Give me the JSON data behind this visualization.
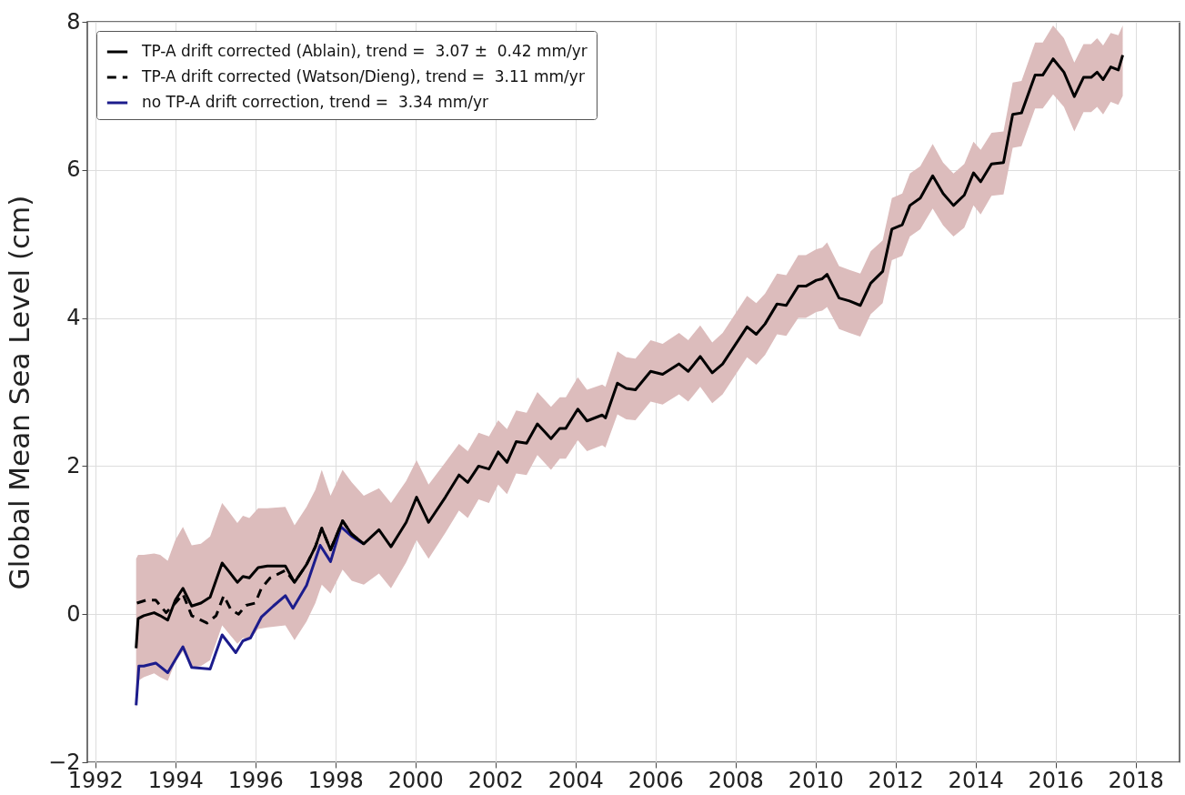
{
  "chart_data": {
    "type": "line",
    "ylabel": "Global Mean Sea Level (cm)",
    "xlim": [
      1991.8,
      2019.1
    ],
    "ylim": [
      -2,
      8
    ],
    "xticks": [
      1992,
      1994,
      1996,
      1998,
      2000,
      2002,
      2004,
      2006,
      2008,
      2010,
      2012,
      2014,
      2016,
      2018
    ],
    "yticks": [
      -2,
      0,
      2,
      4,
      6,
      8
    ],
    "grid": true,
    "legend": "top left",
    "series": [
      {
        "name": "TP-A drift corrected (Ablain), trend =  3.07 ±  0.42 mm/yr",
        "color": "#000000",
        "line_style": "solid",
        "x": [
          1993.02,
          1993.07,
          1993.21,
          1993.47,
          1993.62,
          1993.81,
          1994.0,
          1994.19,
          1994.41,
          1994.64,
          1994.87,
          1995.17,
          1995.32,
          1995.55,
          1995.69,
          1995.85,
          1996.07,
          1996.3,
          1996.75,
          1996.98,
          1997.28,
          1997.5,
          1997.66,
          1997.88,
          1998.18,
          1998.41,
          1998.71,
          1999.09,
          1999.39,
          1999.77,
          2000.03,
          2000.33,
          2000.75,
          2001.09,
          2001.31,
          2001.58,
          2001.84,
          2002.07,
          2002.29,
          2002.52,
          2002.78,
          2003.05,
          2003.39,
          2003.61,
          2003.76,
          2004.06,
          2004.29,
          2004.67,
          2004.75,
          2005.05,
          2005.27,
          2005.5,
          2005.88,
          2006.18,
          2006.59,
          2006.82,
          2007.12,
          2007.42,
          2007.68,
          2008.29,
          2008.52,
          2008.74,
          2009.04,
          2009.27,
          2009.57,
          2009.76,
          2010.02,
          2010.17,
          2010.29,
          2010.59,
          2010.85,
          2011.12,
          2011.38,
          2011.68,
          2011.91,
          2012.17,
          2012.36,
          2012.62,
          2012.93,
          2013.19,
          2013.45,
          2013.72,
          2013.95,
          2014.13,
          2014.4,
          2014.7,
          2014.93,
          2015.15,
          2015.49,
          2015.68,
          2015.94,
          2016.21,
          2016.47,
          2016.7,
          2016.89,
          2017.04,
          2017.19,
          2017.38,
          2017.57,
          2017.68
        ],
        "values": [
          -0.46,
          -0.06,
          -0.02,
          0.02,
          -0.02,
          -0.08,
          0.19,
          0.35,
          0.11,
          0.15,
          0.23,
          0.69,
          0.59,
          0.43,
          0.51,
          0.49,
          0.63,
          0.65,
          0.65,
          0.43,
          0.67,
          0.91,
          1.16,
          0.87,
          1.26,
          1.08,
          0.95,
          1.14,
          0.91,
          1.24,
          1.58,
          1.24,
          1.58,
          1.88,
          1.78,
          2.0,
          1.96,
          2.19,
          2.05,
          2.33,
          2.31,
          2.57,
          2.37,
          2.51,
          2.51,
          2.77,
          2.61,
          2.69,
          2.65,
          3.12,
          3.05,
          3.03,
          3.28,
          3.24,
          3.38,
          3.28,
          3.48,
          3.26,
          3.38,
          3.88,
          3.78,
          3.92,
          4.19,
          4.17,
          4.43,
          4.43,
          4.51,
          4.53,
          4.59,
          4.27,
          4.23,
          4.17,
          4.47,
          4.63,
          5.2,
          5.26,
          5.52,
          5.62,
          5.92,
          5.68,
          5.52,
          5.66,
          5.96,
          5.84,
          6.08,
          6.1,
          6.75,
          6.77,
          7.28,
          7.28,
          7.5,
          7.32,
          6.99,
          7.25,
          7.25,
          7.32,
          7.22,
          7.39,
          7.35,
          7.55
        ],
        "lower": [
          -1.3,
          -0.9,
          -0.85,
          -0.8,
          -0.85,
          -0.9,
          -0.65,
          -0.5,
          -0.72,
          -0.7,
          -0.62,
          -0.15,
          -0.25,
          -0.4,
          -0.32,
          -0.35,
          -0.2,
          -0.18,
          -0.15,
          -0.35,
          -0.1,
          0.15,
          0.4,
          0.28,
          0.6,
          0.45,
          0.4,
          0.55,
          0.35,
          0.7,
          1.0,
          0.75,
          1.1,
          1.4,
          1.3,
          1.55,
          1.5,
          1.75,
          1.62,
          1.9,
          1.88,
          2.15,
          1.95,
          2.1,
          2.1,
          2.35,
          2.2,
          2.28,
          2.25,
          2.7,
          2.63,
          2.62,
          2.87,
          2.83,
          2.97,
          2.87,
          3.07,
          2.85,
          2.97,
          3.47,
          3.37,
          3.5,
          3.78,
          3.76,
          4.0,
          4.0,
          4.08,
          4.1,
          4.15,
          3.85,
          3.8,
          3.75,
          4.05,
          4.2,
          4.78,
          4.84,
          5.1,
          5.2,
          5.48,
          5.25,
          5.1,
          5.22,
          5.52,
          5.4,
          5.65,
          5.67,
          6.3,
          6.32,
          6.83,
          6.83,
          7.02,
          6.85,
          6.52,
          6.78,
          6.78,
          6.85,
          6.75,
          6.92,
          6.88,
          7.0
        ],
        "upper": [
          0.75,
          0.8,
          0.8,
          0.82,
          0.8,
          0.72,
          1.0,
          1.18,
          0.93,
          0.95,
          1.05,
          1.5,
          1.4,
          1.23,
          1.33,
          1.3,
          1.43,
          1.43,
          1.45,
          1.2,
          1.45,
          1.68,
          1.95,
          1.6,
          1.95,
          1.78,
          1.6,
          1.7,
          1.5,
          1.8,
          2.08,
          1.75,
          2.05,
          2.3,
          2.2,
          2.45,
          2.4,
          2.62,
          2.5,
          2.75,
          2.72,
          3.0,
          2.8,
          2.93,
          2.93,
          3.2,
          3.03,
          3.1,
          3.07,
          3.55,
          3.47,
          3.45,
          3.7,
          3.65,
          3.8,
          3.7,
          3.9,
          3.67,
          3.8,
          4.3,
          4.2,
          4.33,
          4.6,
          4.58,
          4.85,
          4.85,
          4.93,
          4.95,
          5.02,
          4.7,
          4.65,
          4.6,
          4.9,
          5.05,
          5.62,
          5.68,
          5.95,
          6.05,
          6.35,
          6.1,
          5.95,
          6.08,
          6.38,
          6.27,
          6.5,
          6.52,
          7.18,
          7.2,
          7.72,
          7.72,
          7.95,
          7.78,
          7.45,
          7.7,
          7.7,
          7.78,
          7.68,
          7.85,
          7.82,
          7.95
        ]
      },
      {
        "name": "TP-A drift corrected (Watson/Dieng), trend =  3.11 mm/yr",
        "color": "#000000",
        "line_style": "dashed",
        "x": [
          1993.04,
          1993.28,
          1993.51,
          1993.77,
          1994.0,
          1994.19,
          1994.41,
          1994.79,
          1995.02,
          1995.21,
          1995.39,
          1995.58,
          1995.77,
          1996.0,
          1996.15,
          1996.37,
          1996.6,
          1996.75,
          1996.98,
          1997.28,
          1997.5,
          1997.66,
          1997.88,
          1998.18,
          1998.41,
          1998.71
        ],
        "values": [
          0.15,
          0.19,
          0.19,
          0.02,
          0.15,
          0.27,
          -0.02,
          -0.12,
          -0.02,
          0.25,
          0.06,
          0.0,
          0.12,
          0.15,
          0.35,
          0.49,
          0.55,
          0.59,
          0.43,
          0.67,
          0.91,
          1.16,
          0.87,
          1.26,
          1.08,
          0.95
        ]
      },
      {
        "name": "no TP-A drift correction, trend =  3.34 mm/yr",
        "color": "#1c1c8c",
        "line_style": "solid",
        "x": [
          1993.02,
          1993.09,
          1993.21,
          1993.51,
          1993.81,
          1994.19,
          1994.41,
          1994.87,
          1995.17,
          1995.51,
          1995.69,
          1995.88,
          1996.15,
          1996.45,
          1996.75,
          1996.94,
          1997.28,
          1997.62,
          1997.88,
          1998.14,
          1998.41,
          1998.71
        ],
        "values": [
          -1.23,
          -0.7,
          -0.7,
          -0.66,
          -0.79,
          -0.44,
          -0.72,
          -0.74,
          -0.28,
          -0.52,
          -0.36,
          -0.32,
          -0.04,
          0.11,
          0.25,
          0.08,
          0.39,
          0.93,
          0.71,
          1.18,
          1.05,
          0.95
        ]
      }
    ]
  }
}
